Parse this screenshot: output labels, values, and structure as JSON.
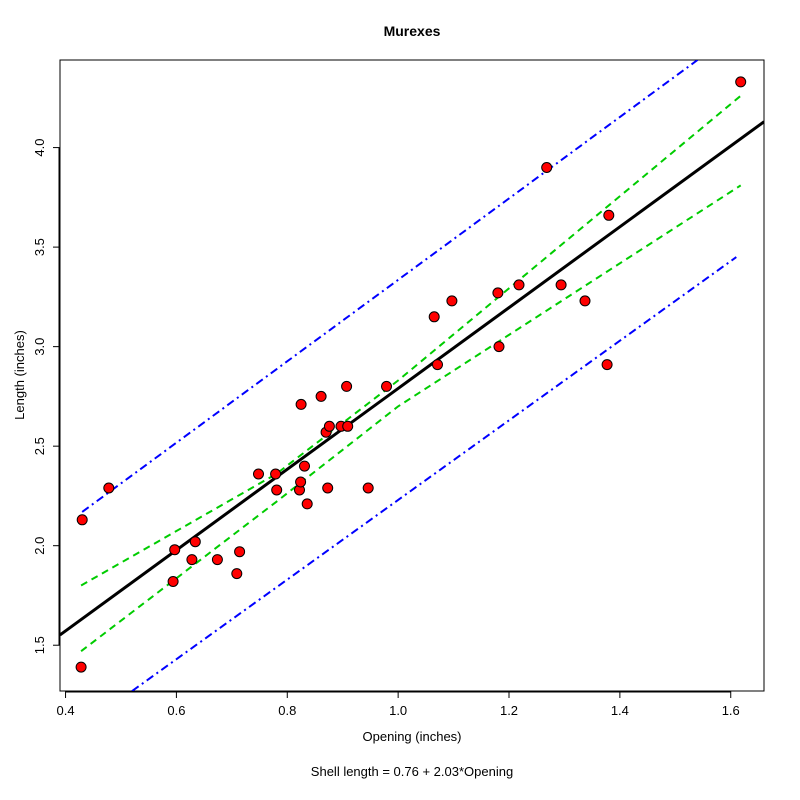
{
  "chart_data": {
    "type": "scatter",
    "title": "Murexes",
    "xlabel": "Opening (inches)",
    "ylabel": "Length (inches)",
    "caption": "Shell length = 0.76 + 2.03*Opening",
    "xlim": [
      0.39,
      1.66
    ],
    "ylim": [
      1.27,
      4.44
    ],
    "x_ticks": [
      0.4,
      0.6,
      0.8,
      1.0,
      1.2,
      1.4,
      1.6
    ],
    "x_tick_labels": [
      "0.4",
      "0.6",
      "0.8",
      "1.0",
      "1.2",
      "1.4",
      "1.6"
    ],
    "y_ticks": [
      1.5,
      2.0,
      2.5,
      3.0,
      3.5,
      4.0
    ],
    "y_tick_labels": [
      "1.5",
      "2.0",
      "2.5",
      "3.0",
      "3.5",
      "4.0"
    ],
    "points": [
      {
        "x": 0.428,
        "y": 1.39
      },
      {
        "x": 0.43,
        "y": 2.13
      },
      {
        "x": 0.478,
        "y": 2.29
      },
      {
        "x": 0.594,
        "y": 1.82
      },
      {
        "x": 0.597,
        "y": 1.98
      },
      {
        "x": 0.628,
        "y": 1.93
      },
      {
        "x": 0.634,
        "y": 2.02
      },
      {
        "x": 0.674,
        "y": 1.93
      },
      {
        "x": 0.709,
        "y": 1.86
      },
      {
        "x": 0.714,
        "y": 1.97
      },
      {
        "x": 0.748,
        "y": 2.36
      },
      {
        "x": 0.779,
        "y": 2.36
      },
      {
        "x": 0.781,
        "y": 2.28
      },
      {
        "x": 0.822,
        "y": 2.28
      },
      {
        "x": 0.824,
        "y": 2.32
      },
      {
        "x": 0.825,
        "y": 2.71
      },
      {
        "x": 0.831,
        "y": 2.4
      },
      {
        "x": 0.836,
        "y": 2.21
      },
      {
        "x": 0.861,
        "y": 2.75
      },
      {
        "x": 0.87,
        "y": 2.57
      },
      {
        "x": 0.873,
        "y": 2.29
      },
      {
        "x": 0.876,
        "y": 2.6
      },
      {
        "x": 0.897,
        "y": 2.6
      },
      {
        "x": 0.907,
        "y": 2.8
      },
      {
        "x": 0.909,
        "y": 2.6
      },
      {
        "x": 0.946,
        "y": 2.29
      },
      {
        "x": 0.979,
        "y": 2.8
      },
      {
        "x": 1.065,
        "y": 3.15
      },
      {
        "x": 1.071,
        "y": 2.91
      },
      {
        "x": 1.097,
        "y": 3.23
      },
      {
        "x": 1.18,
        "y": 3.27
      },
      {
        "x": 1.182,
        "y": 3.0
      },
      {
        "x": 1.218,
        "y": 3.31
      },
      {
        "x": 1.268,
        "y": 3.9
      },
      {
        "x": 1.294,
        "y": 3.31
      },
      {
        "x": 1.337,
        "y": 3.23
      },
      {
        "x": 1.377,
        "y": 2.91
      },
      {
        "x": 1.38,
        "y": 3.66
      },
      {
        "x": 1.618,
        "y": 4.33
      }
    ],
    "fit_line": {
      "intercept": 0.76,
      "slope": 2.03,
      "color": "#000000"
    },
    "confidence_band": {
      "color": "#00cc00",
      "upper": [
        {
          "x": 0.428,
          "y": 1.8
        },
        {
          "x": 0.78,
          "y": 2.36
        },
        {
          "x": 1.0,
          "y": 2.83
        },
        {
          "x": 1.618,
          "y": 4.26
        }
      ],
      "lower": [
        {
          "x": 0.428,
          "y": 1.47
        },
        {
          "x": 0.78,
          "y": 2.22
        },
        {
          "x": 1.0,
          "y": 2.7
        },
        {
          "x": 1.618,
          "y": 3.81
        }
      ]
    },
    "prediction_band": {
      "color": "#0000ff",
      "upper": [
        {
          "x": 0.43,
          "y": 2.17
        },
        {
          "x": 1.54,
          "y": 4.44
        }
      ],
      "lower": [
        {
          "x": 0.52,
          "y": 1.27
        },
        {
          "x": 1.61,
          "y": 3.45
        }
      ]
    },
    "point_fill": "#ff0000",
    "point_stroke": "#000000",
    "grid": false,
    "legend": "none"
  }
}
